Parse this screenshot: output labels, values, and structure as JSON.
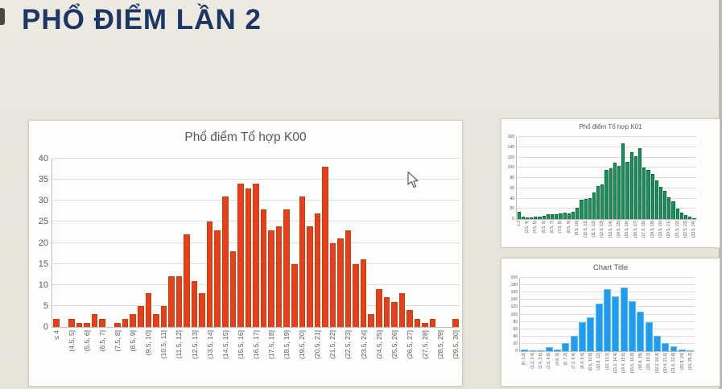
{
  "slide": {
    "title": "PHỔ ĐIỂM LẦN 2",
    "title_color": "#1d3765",
    "background_color": "#e9e6dd"
  },
  "chart_data": [
    {
      "id": "k00",
      "type": "bar",
      "title": "Phổ điểm Tổ hợp K00",
      "xlabel": "",
      "ylabel": "",
      "ylim": [
        0,
        40
      ],
      "ytick_step": 5,
      "grid": true,
      "legend": false,
      "bar_color": "#ee3b1b",
      "bar_border_color": "#ae4a12",
      "label_every": 2,
      "categories": [
        "≤ 4",
        "(4.5, 5]",
        "(5.5, 6]",
        "(6.5, 7]",
        "(7.5, 8]",
        "(8.5, 9]",
        "(9.5, 10]",
        "(10.5, 11]",
        "(11.5, 12]",
        "(12.5, 13]",
        "(13.5, 14]",
        "(14.5, 15]",
        "(15.5, 16]",
        "(16.5, 17]",
        "(17.5, 18]",
        "(18.5, 19]",
        "(19.5, 20]",
        "(20.5, 21]",
        "(21.5, 22]",
        "(22.5, 23]",
        "(23.5, 24]",
        "(24.5, 25]",
        "(25.5, 26]",
        "(26.5, 27]",
        "(27.5, 28]",
        "(28.5, 29]",
        "(29.5, 30]"
      ],
      "values": [
        2,
        0,
        2,
        1,
        1,
        3,
        2,
        0,
        1,
        2,
        3,
        5,
        8,
        3,
        5,
        12,
        12,
        22,
        11,
        8,
        25,
        23,
        31,
        18,
        34,
        33,
        34,
        28,
        23,
        24,
        28,
        15,
        31,
        24,
        27,
        38,
        20,
        21,
        23,
        15,
        16,
        3,
        9,
        7,
        6,
        8,
        4,
        2,
        1,
        2,
        0,
        0,
        2
      ]
    },
    {
      "id": "k01",
      "type": "bar",
      "title": "Phổ điểm Tổ hợp K01",
      "xlabel": "",
      "ylabel": "",
      "ylim": [
        0,
        160
      ],
      "ytick_step": 20,
      "grid": true,
      "legend": false,
      "bar_color": "#17945a",
      "bar_border_color": "#0b6a3c",
      "label_every": 2,
      "categories": [
        "≤ 3",
        "(3.5, 4]",
        "(4.5, 5]",
        "(5.5, 6]",
        "(6.5, 7]",
        "(7.5, 8]",
        "(8.5, 9]",
        "(9.5, 10]",
        "(10.5, 11]",
        "(11.5, 12]",
        "(12.5, 13]",
        "(13.5, 14]",
        "(14.5, 15]",
        "(15.5, 16]",
        "(16.5, 17]",
        "(17.5, 18]",
        "(18.5, 19]",
        "(19.5, 20]",
        "(20.5, 21]",
        "(21.5, 22]",
        "(22.5, 23]",
        "(23.5, 24]"
      ],
      "values": [
        14,
        5,
        3,
        3,
        4,
        5,
        7,
        9,
        9,
        10,
        11,
        12,
        11,
        14,
        22,
        38,
        40,
        41,
        52,
        64,
        68,
        96,
        99,
        110,
        103,
        148,
        111,
        131,
        122,
        138,
        100,
        96,
        88,
        75,
        62,
        55,
        43,
        35,
        20,
        13,
        8,
        4,
        2
      ]
    },
    {
      "id": "chart-title-blue",
      "type": "bar",
      "title": "Chart Title",
      "xlabel": "",
      "ylabel": "",
      "ylim": [
        0,
        200
      ],
      "ytick_step": 20,
      "grid": true,
      "legend": false,
      "bar_color": "#1f9cee",
      "bar_border_color": "#64bdf2",
      "label_every": 1,
      "categories": [
        "[0, 1.2]",
        "(1.2, 2.4]",
        "(2.4, 3.6]",
        "(3.6, 4.8]",
        "(4.8, 6]",
        "(6, 7.2]",
        "(7.2, 8.4]",
        "(8.4, 9.6]",
        "(9.6, 10.8]",
        "(10.8, 12]",
        "(12, 13.2]",
        "(13.2, 14.4]",
        "(14.4, 15.6]",
        "(15.6, 16.8]",
        "(16.8, 18]",
        "(18, 19.2]",
        "(19.2, 20.4]",
        "(20.4, 21.6]",
        "(21.6, 22.8]",
        "(22.8, 24]",
        "(24, 25.2]"
      ],
      "values": [
        5,
        2,
        1,
        12,
        5,
        21,
        42,
        80,
        93,
        130,
        170,
        150,
        173,
        136,
        108,
        80,
        41,
        21,
        13,
        5,
        2
      ]
    }
  ]
}
